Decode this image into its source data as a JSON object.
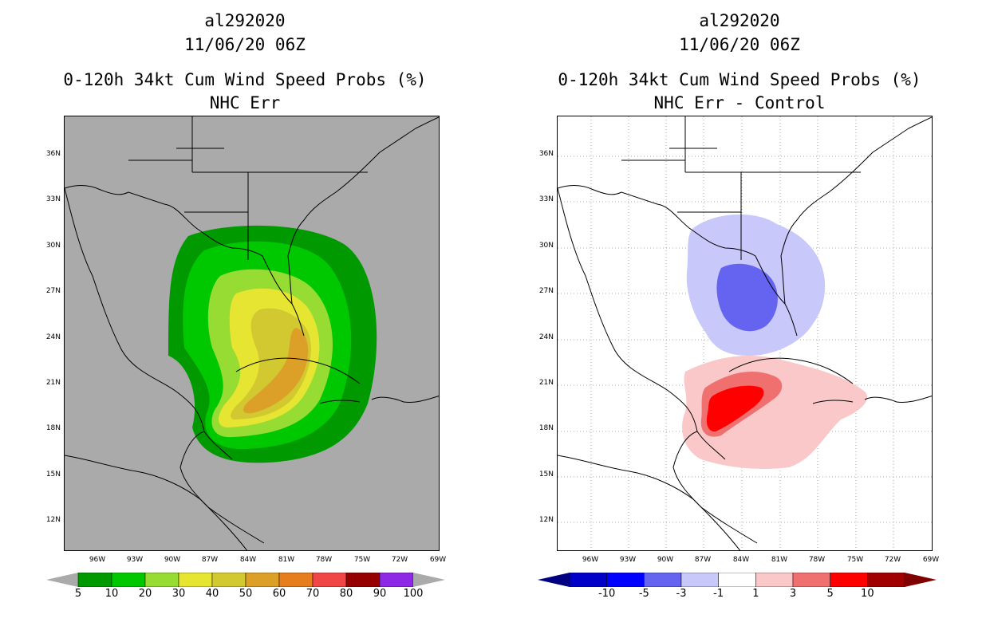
{
  "left_panel": {
    "storm_id": "al292020",
    "datetime": "11/06/20 06Z",
    "product": "0-120h 34kt Cum Wind Speed Probs (%)",
    "subtitle": "NHC Err",
    "colorbar": {
      "colors": [
        "#009a00",
        "#00c800",
        "#96dc32",
        "#e6e632",
        "#d2c830",
        "#dca028",
        "#e67e1e",
        "#f04646",
        "#960000",
        "#8c28e6"
      ],
      "labels": [
        "5",
        "10",
        "20",
        "30",
        "40",
        "50",
        "60",
        "70",
        "80",
        "90",
        "100"
      ]
    },
    "background": "#aaaaaa"
  },
  "right_panel": {
    "storm_id": "al292020",
    "datetime": "11/06/20 06Z",
    "product": "0-120h 34kt Cum Wind Speed Probs (%)",
    "subtitle": "NHC Err - Control",
    "colorbar": {
      "colors": [
        "#0000c8",
        "#0000ff",
        "#6464f0",
        "#c8c8fa",
        "#ffffff",
        "#fac8c8",
        "#f07070",
        "#ff0000",
        "#a00000"
      ],
      "labels": [
        "-10",
        "-5",
        "-3",
        "-1",
        "1",
        "3",
        "5",
        "10"
      ]
    },
    "background": "#ffffff"
  },
  "axes": {
    "lat_labels": [
      "36N",
      "33N",
      "30N",
      "27N",
      "24N",
      "21N",
      "18N",
      "15N",
      "12N"
    ],
    "lon_labels": [
      "96W",
      "93W",
      "90W",
      "87W",
      "84W",
      "81W",
      "78W",
      "75W",
      "72W",
      "69W"
    ]
  }
}
